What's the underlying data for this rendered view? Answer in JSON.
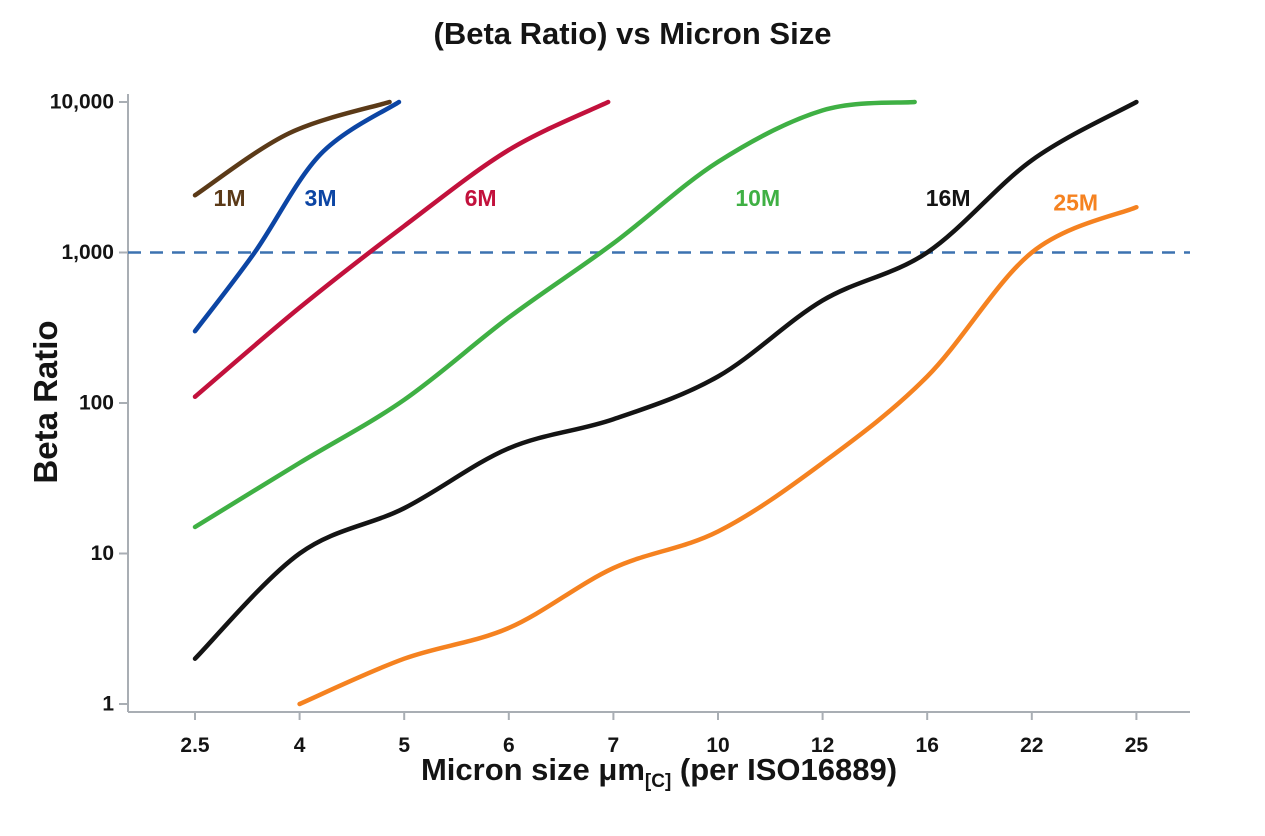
{
  "title": "(Beta Ratio) vs Micron Size",
  "chart_data": {
    "type": "line",
    "title": "(Beta Ratio) vs Micron Size",
    "xlabel": {
      "pre": "Micron size μm",
      "sub": "[C]",
      "post": " (per ISO16889)"
    },
    "ylabel": "Beta Ratio",
    "x_categories": [
      "2.5",
      "4",
      "5",
      "6",
      "7",
      "10",
      "12",
      "16",
      "22",
      "25"
    ],
    "y_scale": "log",
    "ylim": [
      1,
      10000
    ],
    "y_ticks": [
      "1",
      "10",
      "100",
      "1,000",
      "10,000"
    ],
    "y_tick_values": [
      1,
      10,
      100,
      1000,
      10000
    ],
    "grid": "off",
    "legend_position": "inline-labels",
    "axis_color": "#a9aeb4",
    "reference_line": {
      "value": 1000,
      "color": "#3c72b0",
      "style": "dashed"
    },
    "series": [
      {
        "name": "1M",
        "color": "#5b3a18",
        "points": [
          [
            0,
            2400
          ],
          [
            0.9,
            6200
          ],
          [
            1.86,
            10000
          ]
        ],
        "label_at": [
          0.33,
          2300
        ]
      },
      {
        "name": "3M",
        "color": "#0c45a4",
        "points": [
          [
            0,
            300
          ],
          [
            0.57,
            1000
          ],
          [
            1.2,
            4500
          ],
          [
            1.95,
            10000
          ]
        ],
        "label_at": [
          1.2,
          2300
        ]
      },
      {
        "name": "6M",
        "color": "#c2113c",
        "points": [
          [
            0,
            110
          ],
          [
            1,
            430
          ],
          [
            2,
            1500
          ],
          [
            3,
            4800
          ],
          [
            3.95,
            10000
          ]
        ],
        "label_at": [
          2.73,
          2300
        ]
      },
      {
        "name": "10M",
        "color": "#3fb044",
        "points": [
          [
            0,
            15
          ],
          [
            1,
            40
          ],
          [
            2,
            105
          ],
          [
            3,
            370
          ],
          [
            4,
            1150
          ],
          [
            5,
            4000
          ],
          [
            6,
            8800
          ],
          [
            6.88,
            10000
          ]
        ],
        "label_at": [
          5.38,
          2300
        ]
      },
      {
        "name": "16M",
        "color": "#141414",
        "points": [
          [
            0,
            2
          ],
          [
            1,
            10
          ],
          [
            2,
            20
          ],
          [
            3,
            50
          ],
          [
            4,
            78
          ],
          [
            5,
            150
          ],
          [
            6,
            480
          ],
          [
            7,
            1000
          ],
          [
            8,
            4100
          ],
          [
            9,
            10000
          ]
        ],
        "label_at": [
          7.2,
          2300
        ]
      },
      {
        "name": "25M",
        "color": "#f58220",
        "points": [
          [
            1,
            1
          ],
          [
            2,
            2
          ],
          [
            3,
            3.2
          ],
          [
            4,
            8
          ],
          [
            5,
            14
          ],
          [
            6,
            40
          ],
          [
            7,
            150
          ],
          [
            8,
            1000
          ],
          [
            9,
            2000
          ]
        ],
        "label_at": [
          8.42,
          2150
        ]
      }
    ]
  }
}
